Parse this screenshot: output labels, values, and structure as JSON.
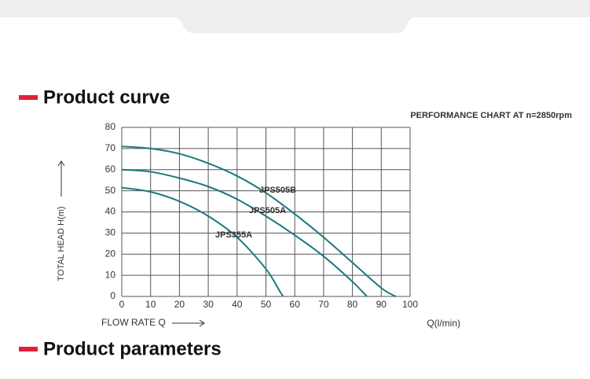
{
  "header": {
    "curve_heading": "Product curve",
    "parameters_heading": "Product parameters"
  },
  "chart_data": {
    "type": "line",
    "title": "PERFORMANCE CHART AT n=2850rpm",
    "x_label": "FLOW RATE Q",
    "x_unit": "Q(l/min)",
    "y_label": "TOTAL HEAD H(m)",
    "xlim": [
      0,
      100
    ],
    "ylim": [
      0,
      80
    ],
    "xticks": [
      0,
      10,
      20,
      30,
      40,
      50,
      60,
      70,
      80,
      90,
      100
    ],
    "yticks": [
      0,
      10,
      20,
      30,
      40,
      50,
      60,
      70,
      80
    ],
    "grid": true,
    "series": [
      {
        "name": "JPS505B",
        "color": "#1a7a80",
        "x": [
          0,
          10,
          20,
          30,
          40,
          50,
          60,
          70,
          80,
          90,
          95
        ],
        "values": [
          71,
          70,
          67.5,
          63,
          57,
          49,
          39,
          28,
          16,
          4,
          0
        ]
      },
      {
        "name": "JPS505A",
        "color": "#1a7a80",
        "x": [
          0,
          10,
          20,
          30,
          40,
          50,
          60,
          70,
          80,
          85
        ],
        "values": [
          60,
          59,
          56,
          52,
          46,
          38,
          29,
          19,
          7,
          0
        ]
      },
      {
        "name": "JPS355A",
        "color": "#1a7a80",
        "x": [
          0,
          10,
          20,
          30,
          40,
          50,
          55,
          56
        ],
        "values": [
          51.5,
          49.5,
          45,
          38,
          28,
          13,
          2,
          0
        ]
      }
    ]
  }
}
